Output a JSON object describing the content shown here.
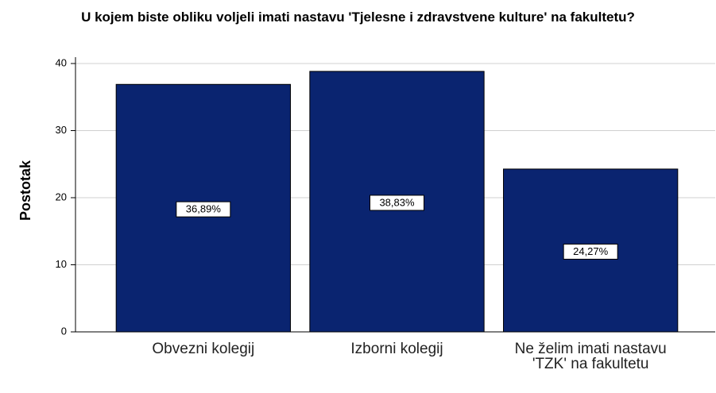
{
  "chart_data": {
    "type": "bar",
    "title": "U kojem biste obliku voljeli imati nastavu 'Tjelesne i zdravstvene kulture' na fakultetu?",
    "ylabel": "Postotak",
    "categories": [
      "Obvezni kolegij",
      "Izborni kolegij",
      "Ne želim imati nastavu 'TZK' na fakultetu"
    ],
    "values": [
      36.89,
      38.83,
      24.27
    ],
    "value_labels": [
      "36,89%",
      "38,83%",
      "24,27%"
    ],
    "color": "#0a2470",
    "ylim": [
      0,
      40
    ],
    "yticks": [
      0,
      10,
      20,
      30,
      40
    ],
    "grid": true
  }
}
